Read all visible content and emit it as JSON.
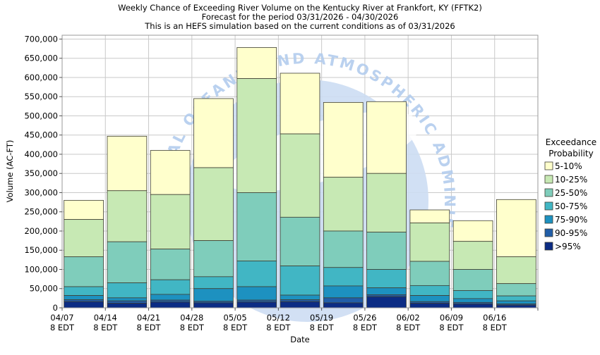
{
  "watermark": {
    "text": "NATIONAL OCEANIC AND ATMOSPHERIC ADMINISTRATION",
    "circle_color": "#cdddf3",
    "text_color": "#b3cdee"
  },
  "chart_data": {
    "type": "bar",
    "stacked": true,
    "title": "Weekly Chance of Exceeding River Volume on the Kentucky River at Frankfort, KY (FFTK2)",
    "subtitle": "Forecast for the period 03/31/2026 - 04/30/2026",
    "note": "This is an HEFS simulation based on the current conditions as of 03/31/2026",
    "xlabel": "Date",
    "ylabel": "Volume (AC-FT)",
    "ylim": [
      0,
      710000
    ],
    "ytick_interval": 50000,
    "grid": true,
    "time_suffix": "8 EDT",
    "legend": {
      "title": [
        "Exceedance",
        "Probability"
      ],
      "position": "right",
      "entries": [
        {
          "label": "5-10%",
          "color": "#ffffcc"
        },
        {
          "label": "10-25%",
          "color": "#c7e9b4"
        },
        {
          "label": "25-50%",
          "color": "#7fcdbb"
        },
        {
          "label": "50-75%",
          "color": "#41b6c4"
        },
        {
          "label": "75-90%",
          "color": "#1d91c0"
        },
        {
          "label": "90-95%",
          "color": "#225ea8"
        },
        {
          "label": ">95%",
          "color": "#0c2c84"
        }
      ]
    },
    "exceedance_levels_pct": [
      5,
      10,
      25,
      50,
      75,
      90,
      95
    ],
    "bars": [
      {
        "date": "04/07",
        "time": "8 EDT",
        "levels": [
          280000,
          230000,
          133000,
          55000,
          32000,
          21000,
          16000
        ]
      },
      {
        "date": "04/14",
        "time": "8 EDT",
        "levels": [
          447000,
          305000,
          172000,
          65000,
          26000,
          18000,
          12000
        ]
      },
      {
        "date": "04/21",
        "time": "8 EDT",
        "levels": [
          410000,
          295000,
          153000,
          73000,
          35000,
          20000,
          15000
        ]
      },
      {
        "date": "04/28",
        "time": "8 EDT",
        "levels": [
          545000,
          365000,
          175000,
          81000,
          50000,
          17000,
          13000
        ]
      },
      {
        "date": "05/05",
        "time": "8 EDT",
        "levels": [
          678000,
          597000,
          300000,
          122000,
          55000,
          20000,
          15000
        ]
      },
      {
        "date": "05/12",
        "time": "8 EDT",
        "levels": [
          611000,
          453000,
          236000,
          109000,
          33000,
          21000,
          16000
        ]
      },
      {
        "date": "05/19",
        "time": "8 EDT",
        "levels": [
          535000,
          340000,
          200000,
          105000,
          57000,
          26000,
          13000
        ]
      },
      {
        "date": "05/26",
        "time": "8 EDT",
        "levels": [
          537000,
          350000,
          197000,
          100000,
          52000,
          34000,
          29000
        ]
      },
      {
        "date": "06/02",
        "time": "8 EDT",
        "levels": [
          255000,
          221000,
          121000,
          58000,
          32000,
          16000,
          12000
        ]
      },
      {
        "date": "06/09",
        "time": "8 EDT",
        "levels": [
          227000,
          173000,
          100000,
          45000,
          24000,
          14000,
          10000
        ]
      },
      {
        "date": "06/16",
        "time": "8 EDT",
        "levels": [
          282000,
          133000,
          63000,
          31000,
          18000,
          10000,
          7000
        ]
      }
    ]
  }
}
